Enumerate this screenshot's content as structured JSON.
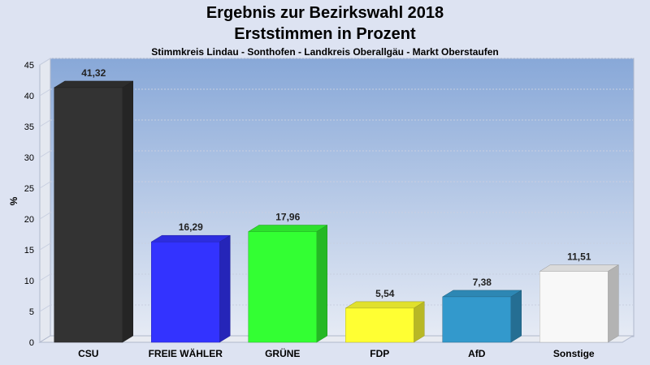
{
  "chart_data": {
    "type": "bar",
    "title": "Ergebnis zur Bezirkswahl 2018",
    "title2": "Erststimmen in Prozent",
    "subtitle": "Stimmkreis Lindau - Sonthofen - Landkreis Oberallgäu - Markt Oberstaufen",
    "ylabel": "%",
    "xlabel": "",
    "ylim": [
      0,
      45
    ],
    "yticks": [
      "0",
      "5",
      "10",
      "15",
      "20",
      "25",
      "30",
      "35",
      "40",
      "45"
    ],
    "grid": true,
    "categories": [
      "CSU",
      "FREIE WÄHLER",
      "GRÜNE",
      "FDP",
      "AfD",
      "Sonstige"
    ],
    "values": [
      41.32,
      16.29,
      17.96,
      5.54,
      7.38,
      11.51
    ],
    "value_labels": [
      "41,32",
      "16,29",
      "17,96",
      "5,54",
      "7,38",
      "11,51"
    ],
    "colors": [
      "#333333",
      "#3333ff",
      "#33ff33",
      "#ffff33",
      "#3399cc",
      "#f8f8f8"
    ]
  }
}
